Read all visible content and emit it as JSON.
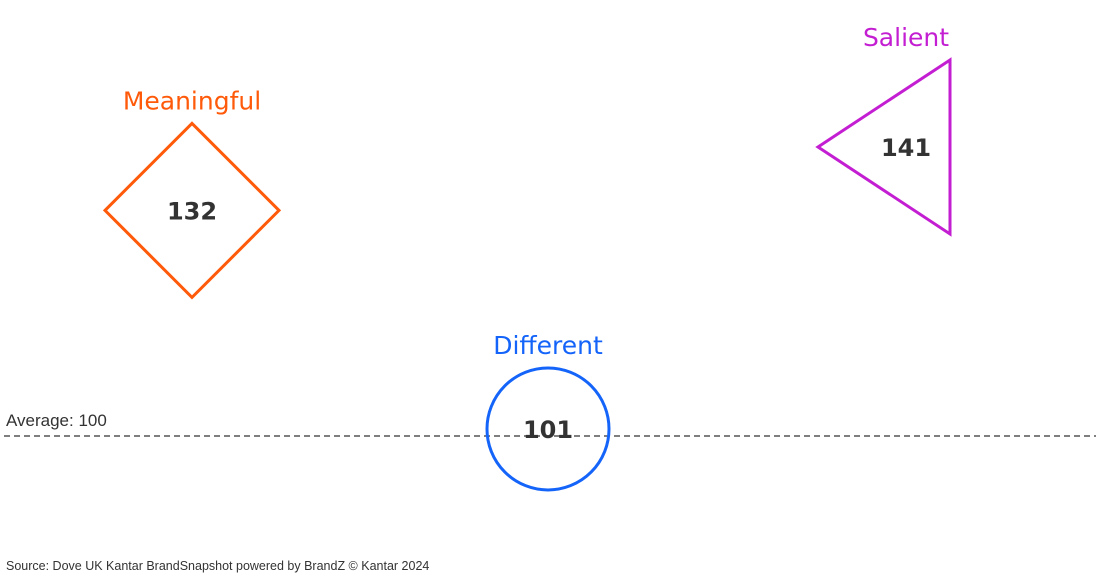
{
  "chart_data": {
    "type": "scatter",
    "title": "",
    "reference_line": {
      "label": "Average: 100",
      "value": 100,
      "style": "dashed",
      "color": "#333333"
    },
    "points": [
      {
        "name": "Meaningful",
        "value": 132,
        "label": "132",
        "shape": "diamond",
        "color": "#FF5A0A"
      },
      {
        "name": "Different",
        "value": 101,
        "label": "101",
        "shape": "circle",
        "color": "#1464FA"
      },
      {
        "name": "Salient",
        "value": 141,
        "label": "141",
        "shape": "triangle-left",
        "color": "#C31ED2"
      }
    ],
    "grid": false,
    "legend": "none"
  },
  "source": "Source: Dove UK Kantar BrandSnapshot powered by BrandZ © Kantar 2024"
}
